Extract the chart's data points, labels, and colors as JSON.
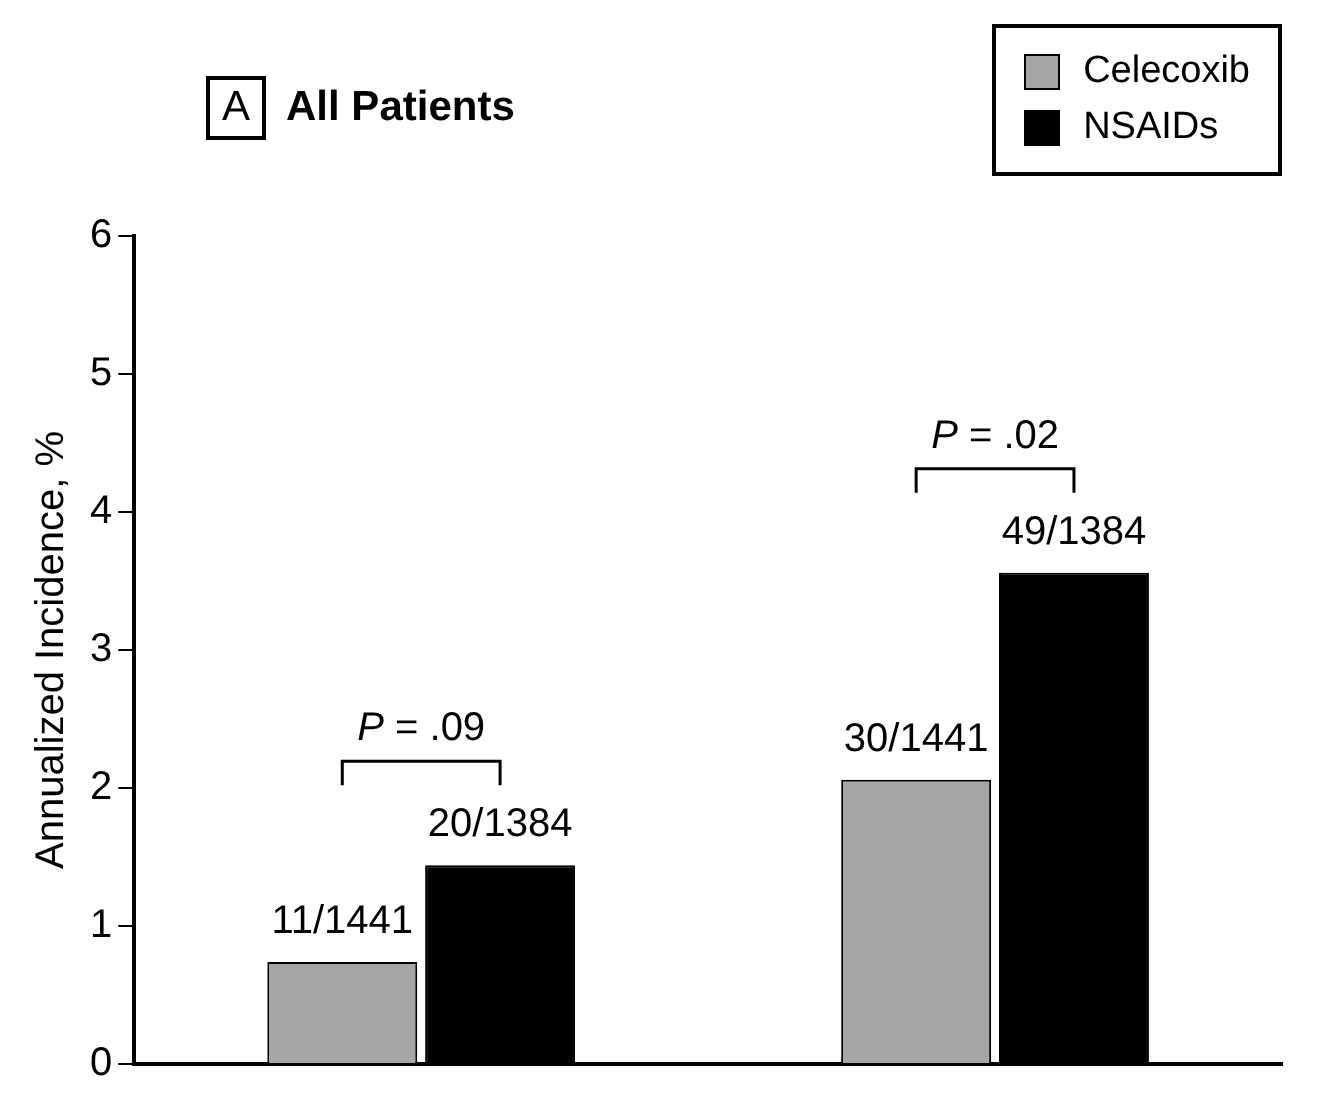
{
  "chart_data": {
    "type": "bar",
    "title": "All Patients",
    "ylabel": "Annualized Incidence, %",
    "categories": [
      null,
      null
    ],
    "series": [
      {
        "name": "Celecoxib",
        "color": "#a6a6a6",
        "values": [
          0.74,
          2.06
        ],
        "value_labels": [
          "11/1441",
          "30/1441"
        ]
      },
      {
        "name": "NSAIDs",
        "color": "#000000",
        "values": [
          1.44,
          3.56
        ],
        "value_labels": [
          "20/1384",
          "49/1384"
        ]
      }
    ],
    "ylim": [
      0,
      6
    ],
    "yticks": [
      0,
      1,
      2,
      3,
      4,
      5,
      6
    ],
    "grid": false,
    "legend": "top right",
    "tick_labels": "y",
    "annotations": [
      "A",
      "P = .09",
      "P = .02"
    ]
  }
}
